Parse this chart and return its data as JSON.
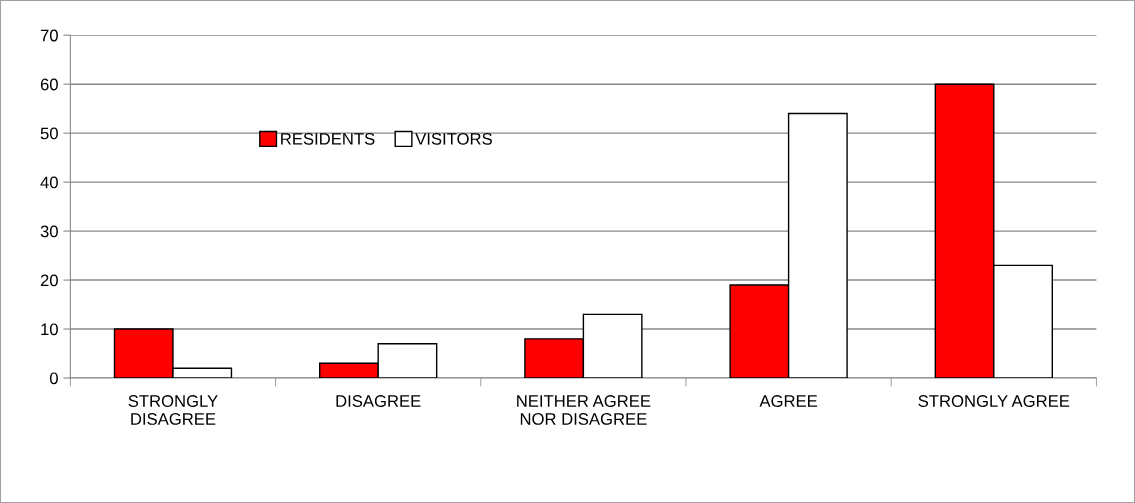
{
  "chart_data": {
    "type": "bar",
    "categories": [
      "STRONGLY\nDISAGREE",
      "DISAGREE",
      "NEITHER AGREE\nNOR DISAGREE",
      "AGREE",
      "STRONGLY AGREE"
    ],
    "series": [
      {
        "name": "RESIDENTS",
        "color": "#ff0000",
        "values": [
          10,
          3,
          8,
          19,
          60
        ]
      },
      {
        "name": "VISITORS",
        "color": "#ffffff",
        "values": [
          2,
          7,
          13,
          54,
          23
        ]
      }
    ],
    "ylim": [
      0,
      70
    ],
    "yticks": [
      0,
      10,
      20,
      30,
      40,
      50,
      60,
      70
    ],
    "grid": "y",
    "legend": "top left"
  }
}
